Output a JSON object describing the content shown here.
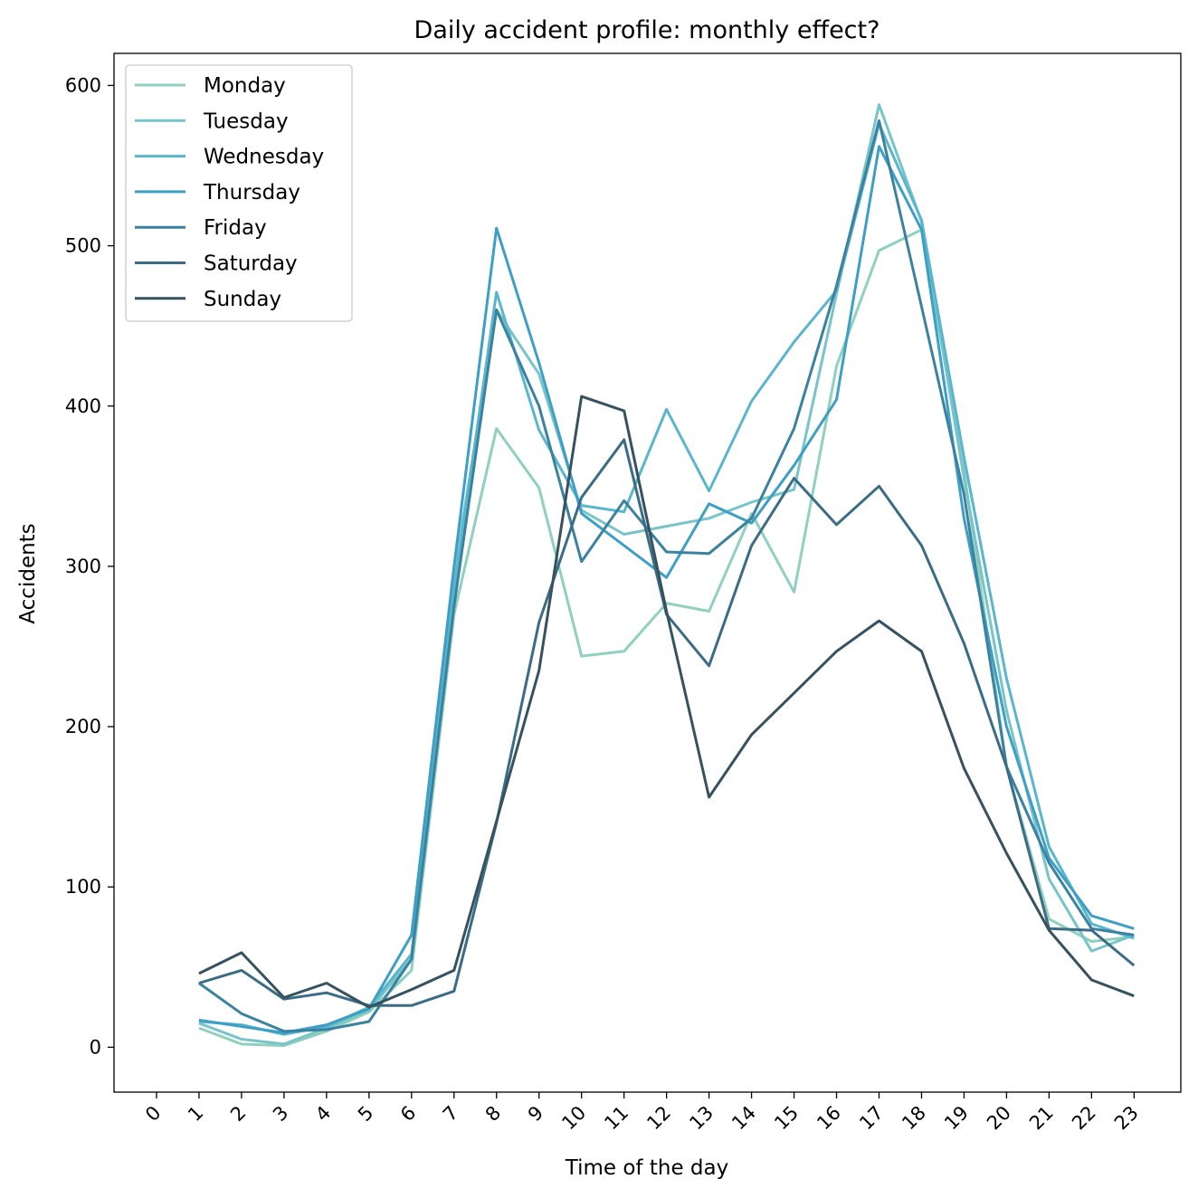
{
  "chart_data": {
    "type": "line",
    "title": "Daily accident profile: monthly effect?",
    "xlabel": "Time of the day",
    "ylabel": "Accidents",
    "xlim": [
      -1,
      24.1
    ],
    "ylim": [
      -28,
      620
    ],
    "x_ticks": [
      "0",
      "1",
      "2",
      "3",
      "4",
      "5",
      "6",
      "7",
      "8",
      "9",
      "10",
      "11",
      "12",
      "13",
      "14",
      "15",
      "16",
      "17",
      "18",
      "19",
      "20",
      "21",
      "22",
      "23"
    ],
    "y_ticks": [
      0,
      100,
      200,
      300,
      400,
      500,
      600
    ],
    "x": [
      1,
      2,
      3,
      4,
      5,
      6,
      7,
      8,
      9,
      10,
      11,
      12,
      13,
      14,
      15,
      16,
      17,
      18,
      19,
      20,
      21,
      22,
      23
    ],
    "grid": false,
    "legend_position": "upper-left",
    "series": [
      {
        "name": "Monday",
        "color": "#8fd0be",
        "values": [
          12,
          2,
          1,
          10,
          22,
          48,
          270,
          386,
          349,
          244,
          247,
          277,
          272,
          333,
          284,
          425,
          497,
          510,
          360,
          175,
          80,
          66,
          69
        ]
      },
      {
        "name": "Tuesday",
        "color": "#77c4c9",
        "values": [
          15,
          5,
          2,
          12,
          23,
          55,
          295,
          460,
          420,
          335,
          320,
          325,
          330,
          340,
          348,
          470,
          588,
          515,
          355,
          210,
          105,
          60,
          70
        ]
      },
      {
        "name": "Wednesday",
        "color": "#5ab6cd",
        "values": [
          16,
          14,
          8,
          13,
          25,
          58,
          285,
          471,
          385,
          338,
          334,
          398,
          347,
          403,
          440,
          472,
          576,
          516,
          368,
          230,
          125,
          77,
          68
        ]
      },
      {
        "name": "Thursday",
        "color": "#3e9fc6",
        "values": [
          17,
          13,
          9,
          14,
          24,
          70,
          300,
          511,
          427,
          333,
          313,
          293,
          339,
          327,
          363,
          404,
          562,
          510,
          330,
          200,
          118,
          82,
          74
        ]
      },
      {
        "name": "Friday",
        "color": "#3b82a0",
        "values": [
          40,
          21,
          10,
          11,
          16,
          55,
          275,
          460,
          400,
          303,
          341,
          309,
          308,
          330,
          386,
          475,
          578,
          462,
          345,
          175,
          115,
          74,
          70
        ]
      },
      {
        "name": "Saturday",
        "color": "#3b6c85",
        "values": [
          40,
          48,
          30,
          34,
          26,
          26,
          35,
          140,
          265,
          343,
          379,
          270,
          238,
          313,
          355,
          326,
          350,
          313,
          252,
          175,
          74,
          73,
          51
        ]
      },
      {
        "name": "Sunday",
        "color": "#36525e",
        "values": [
          46,
          59,
          31,
          40,
          25,
          36,
          48,
          141,
          235,
          406,
          397,
          272,
          156,
          195,
          221,
          247,
          266,
          247,
          174,
          121,
          73,
          42,
          32
        ]
      }
    ]
  }
}
